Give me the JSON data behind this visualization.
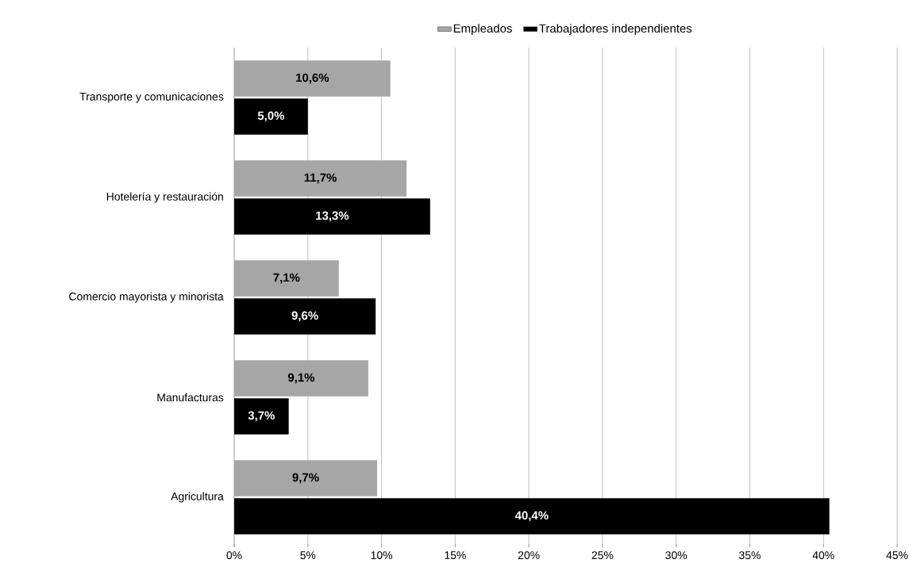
{
  "chart_data": {
    "type": "bar",
    "orientation": "horizontal",
    "categories": [
      "Transporte y comunicaciones",
      "Hotelería y restauración",
      "Comercio mayorista y minorista",
      "Manufacturas",
      "Agricultura"
    ],
    "series": [
      {
        "name": "Empleados",
        "color": "#a6a6a6",
        "values": [
          10.6,
          11.7,
          7.1,
          9.1,
          9.7
        ],
        "value_labels": [
          "10,6%",
          "11,7%",
          "7,1%",
          "9,1%",
          "9,7%"
        ]
      },
      {
        "name": "Trabajadores independientes",
        "color": "#000000",
        "values": [
          5.0,
          13.3,
          9.6,
          3.7,
          40.4
        ],
        "value_labels": [
          "5,0%",
          "13,3%",
          "9,6%",
          "3,7%",
          "40,4%"
        ]
      }
    ],
    "xlim": [
      0,
      45
    ],
    "xticks": [
      {
        "value": 0,
        "label": "0%"
      },
      {
        "value": 5,
        "label": "5%"
      },
      {
        "value": 10,
        "label": "10%"
      },
      {
        "value": 15,
        "label": "15%"
      },
      {
        "value": 20,
        "label": "20%"
      },
      {
        "value": 25,
        "label": "25%"
      },
      {
        "value": 30,
        "label": "30%"
      },
      {
        "value": 35,
        "label": "35%"
      },
      {
        "value": 40,
        "label": "40%"
      },
      {
        "value": 45,
        "label": "45%"
      }
    ],
    "grid": "x",
    "legend": "top"
  }
}
